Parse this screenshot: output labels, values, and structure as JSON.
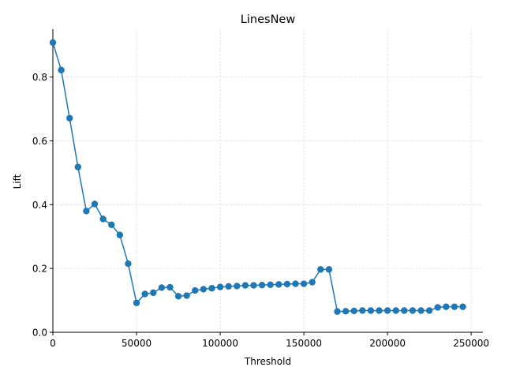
{
  "chart_data": {
    "type": "line",
    "title": "LinesNew",
    "xlabel": "Threshold",
    "ylabel": "Lift",
    "xlim": [
      0,
      257000
    ],
    "ylim": [
      0,
      0.95
    ],
    "grid": true,
    "line_color": "#1f77b4",
    "marker": "circle",
    "x_ticks": [
      {
        "value": 0,
        "label": "0"
      },
      {
        "value": 50000,
        "label": "50000"
      },
      {
        "value": 100000,
        "label": "100000"
      },
      {
        "value": 150000,
        "label": "150000"
      },
      {
        "value": 200000,
        "label": "200000"
      },
      {
        "value": 250000,
        "label": "250000"
      }
    ],
    "y_ticks": [
      {
        "value": 0,
        "label": "0.0"
      },
      {
        "value": 0.2,
        "label": "0.2"
      },
      {
        "value": 0.4,
        "label": "0.4"
      },
      {
        "value": 0.6,
        "label": "0.6"
      },
      {
        "value": 0.8,
        "label": "0.8"
      }
    ],
    "series": [
      {
        "x": [
          0,
          5000,
          10000,
          15000,
          20000,
          25000,
          30000,
          35000,
          40000,
          45000,
          50000,
          55000,
          60000,
          65000,
          70000,
          75000,
          80000,
          85000,
          90000,
          95000,
          100000,
          105000,
          110000,
          115000,
          120000,
          125000,
          130000,
          135000,
          140000,
          145000,
          150000,
          155000,
          160000,
          165000,
          170000,
          175000,
          180000,
          185000,
          190000,
          195000,
          200000,
          205000,
          210000,
          215000,
          220000,
          225000,
          230000,
          235000,
          240000,
          245000
        ],
        "y": [
          0.908,
          0.822,
          0.671,
          0.518,
          0.38,
          0.402,
          0.355,
          0.337,
          0.305,
          0.215,
          0.092,
          0.12,
          0.124,
          0.14,
          0.141,
          0.113,
          0.115,
          0.131,
          0.135,
          0.138,
          0.142,
          0.144,
          0.145,
          0.147,
          0.147,
          0.148,
          0.149,
          0.15,
          0.151,
          0.152,
          0.152,
          0.157,
          0.197,
          0.197,
          0.065,
          0.066,
          0.067,
          0.068,
          0.068,
          0.068,
          0.068,
          0.068,
          0.068,
          0.068,
          0.068,
          0.068,
          0.078,
          0.08,
          0.08,
          0.08
        ]
      }
    ]
  }
}
